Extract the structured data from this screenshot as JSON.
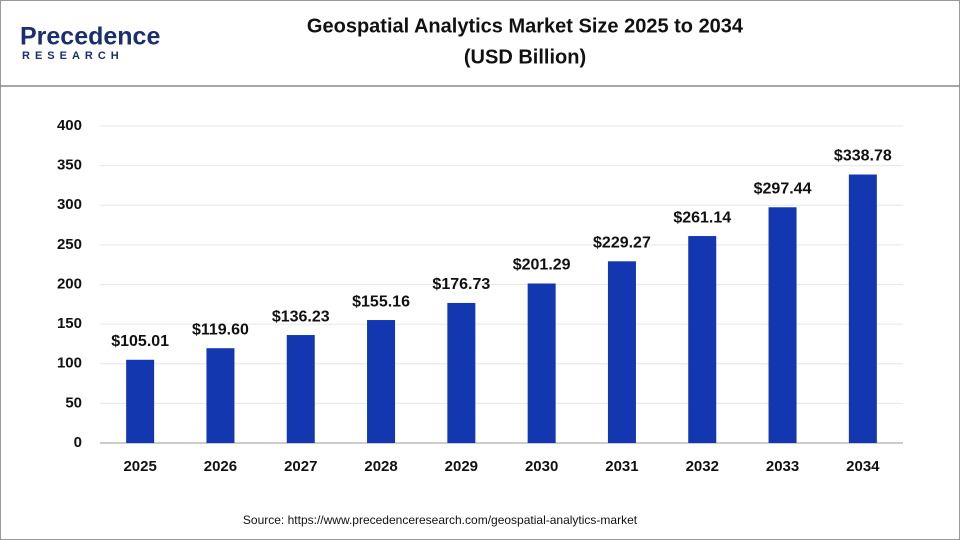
{
  "logo": {
    "name": "Precedence",
    "tagline": "RESEARCH"
  },
  "chart_data": {
    "type": "bar",
    "title": [
      "Geospatial Analytics Market Size 2025 to 2034",
      "(USD Billion)"
    ],
    "categories": [
      "2025",
      "2026",
      "2027",
      "2028",
      "2029",
      "2030",
      "2031",
      "2032",
      "2033",
      "2034"
    ],
    "values": [
      105.01,
      119.6,
      136.23,
      155.16,
      176.73,
      201.29,
      229.27,
      261.14,
      297.44,
      338.78
    ],
    "value_labels": [
      "$105.01",
      "$119.60",
      "$136.23",
      "$155.16",
      "$176.73",
      "$201.29",
      "$229.27",
      "$261.14",
      "$297.44",
      "$338.78"
    ],
    "color": "#1237b0",
    "ylim": [
      0,
      400
    ],
    "yticks": [
      0,
      50,
      100,
      150,
      200,
      250,
      300,
      350,
      400
    ],
    "grid": true
  },
  "source": "Source: https://www.precedenceresearch.com/geospatial-analytics-market"
}
